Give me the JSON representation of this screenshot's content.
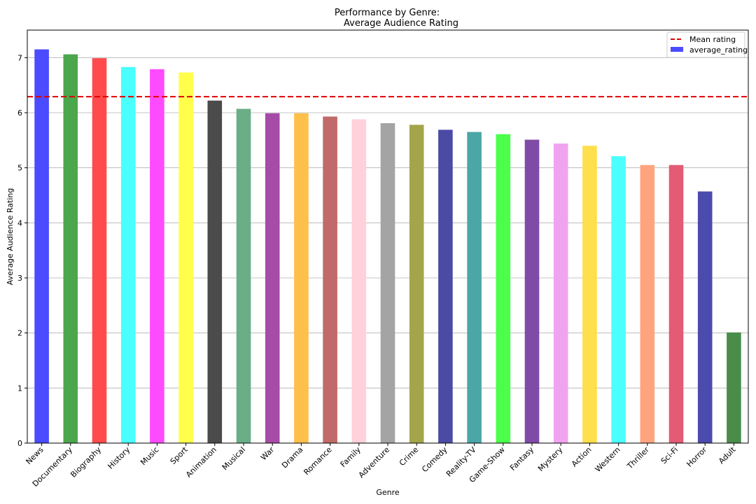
{
  "chart_data": {
    "type": "bar",
    "title_lines": [
      "Performance by Genre:",
      "Average Audience Rating"
    ],
    "xlabel": "Genre",
    "ylabel": "Average Audience Rating",
    "ylim": [
      0,
      7.5
    ],
    "yticks": [
      0,
      1,
      2,
      3,
      4,
      5,
      6,
      7
    ],
    "grid": "horizontal",
    "legend_position": "top-right",
    "categories": [
      "News",
      "Documentary",
      "Biography",
      "History",
      "Music",
      "Sport",
      "Animation",
      "Musical",
      "War",
      "Drama",
      "Romance",
      "Family",
      "Adventure",
      "Crime",
      "Comedy",
      "Reality-TV",
      "Game-Show",
      "Fantasy",
      "Mystery",
      "Action",
      "Western",
      "Thriller",
      "Sci-Fi",
      "Horror",
      "Adult"
    ],
    "series": [
      {
        "name": "average_rating",
        "values": [
          7.15,
          7.06,
          6.99,
          6.83,
          6.79,
          6.73,
          6.22,
          6.07,
          5.99,
          5.99,
          5.93,
          5.88,
          5.81,
          5.78,
          5.69,
          5.65,
          5.61,
          5.51,
          5.44,
          5.4,
          5.21,
          5.05,
          5.05,
          4.57,
          2.01
        ],
        "colors": [
          "#4b4bff",
          "#4ca64c",
          "#ff4b4b",
          "#4bffff",
          "#ff4bff",
          "#ffff4b",
          "#4b4b4b",
          "#6aad87",
          "#a64ca6",
          "#ffbf4b",
          "#c06a6a",
          "#ffd1db",
          "#a4a4a4",
          "#a4a44b",
          "#4b4ba6",
          "#4ba6a6",
          "#4bff4b",
          "#7f4ba6",
          "#f0a4f0",
          "#ffdf4b",
          "#4bffff",
          "#ffa47f",
          "#e35b75",
          "#4b4bad",
          "#4a8d4a"
        ]
      }
    ],
    "reference_line": {
      "name": "Mean rating",
      "value": 6.29,
      "color": "#e00000",
      "style": "dashed"
    },
    "legend": [
      {
        "label": "Mean rating",
        "kind": "line",
        "color": "#e00000"
      },
      {
        "label": "average_rating",
        "kind": "patch",
        "color": "#4b4bff"
      }
    ]
  }
}
